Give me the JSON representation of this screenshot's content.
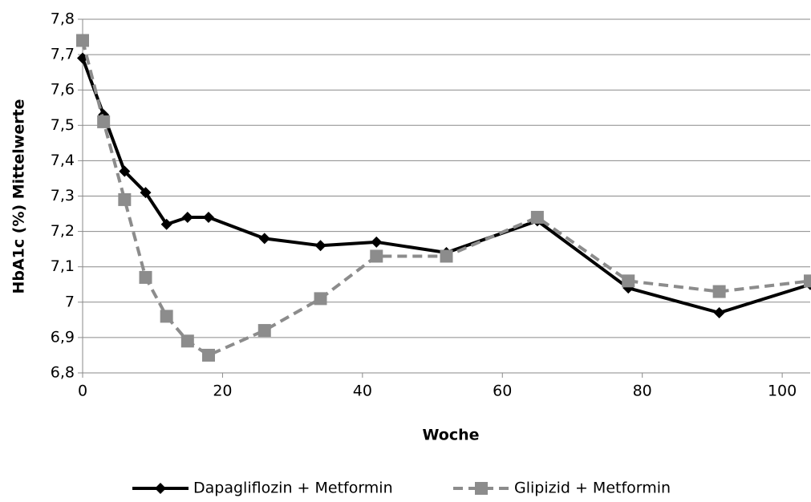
{
  "chart_data": {
    "type": "line",
    "x_label": "Woche",
    "y_label": "HbA1c (%) Mittelwerte",
    "x": [
      0,
      3,
      6,
      9,
      12,
      15,
      18,
      26,
      34,
      42,
      52,
      65,
      78,
      91,
      104
    ],
    "series": [
      {
        "name": "Dapagliflozin + Metformin",
        "color": "#000000",
        "dashed": false,
        "marker": "diamond",
        "values": [
          7.69,
          7.53,
          7.37,
          7.31,
          7.22,
          7.24,
          7.24,
          7.18,
          7.16,
          7.17,
          7.14,
          7.23,
          7.04,
          6.97,
          7.05
        ]
      },
      {
        "name": "Glipizid + Metformin",
        "color": "#8c8c8c",
        "dashed": true,
        "marker": "square",
        "values": [
          7.74,
          7.51,
          7.29,
          7.07,
          6.96,
          6.89,
          6.85,
          6.92,
          7.01,
          7.13,
          7.13,
          7.24,
          7.06,
          7.03,
          7.06
        ]
      }
    ],
    "xlim": [
      0,
      104
    ],
    "xticks": [
      0,
      20,
      40,
      60,
      80,
      100
    ],
    "ylim": [
      6.8,
      7.8
    ],
    "yticks": [
      {
        "value": 6.8,
        "label": "6,8"
      },
      {
        "value": 6.9,
        "label": "6,9"
      },
      7,
      {
        "value": 7.1,
        "label": "7,1"
      },
      {
        "value": 7.2,
        "label": "7,2"
      },
      {
        "value": 7.3,
        "label": "7,3"
      },
      {
        "value": 7.4,
        "label": "7,4"
      },
      {
        "value": 7.5,
        "label": "7,5"
      },
      {
        "value": 7.6,
        "label": "7,6"
      },
      {
        "value": 7.7,
        "label": "7,7"
      },
      {
        "value": 7.8,
        "label": "7,8"
      }
    ],
    "grid": true,
    "legend": "bottom"
  }
}
